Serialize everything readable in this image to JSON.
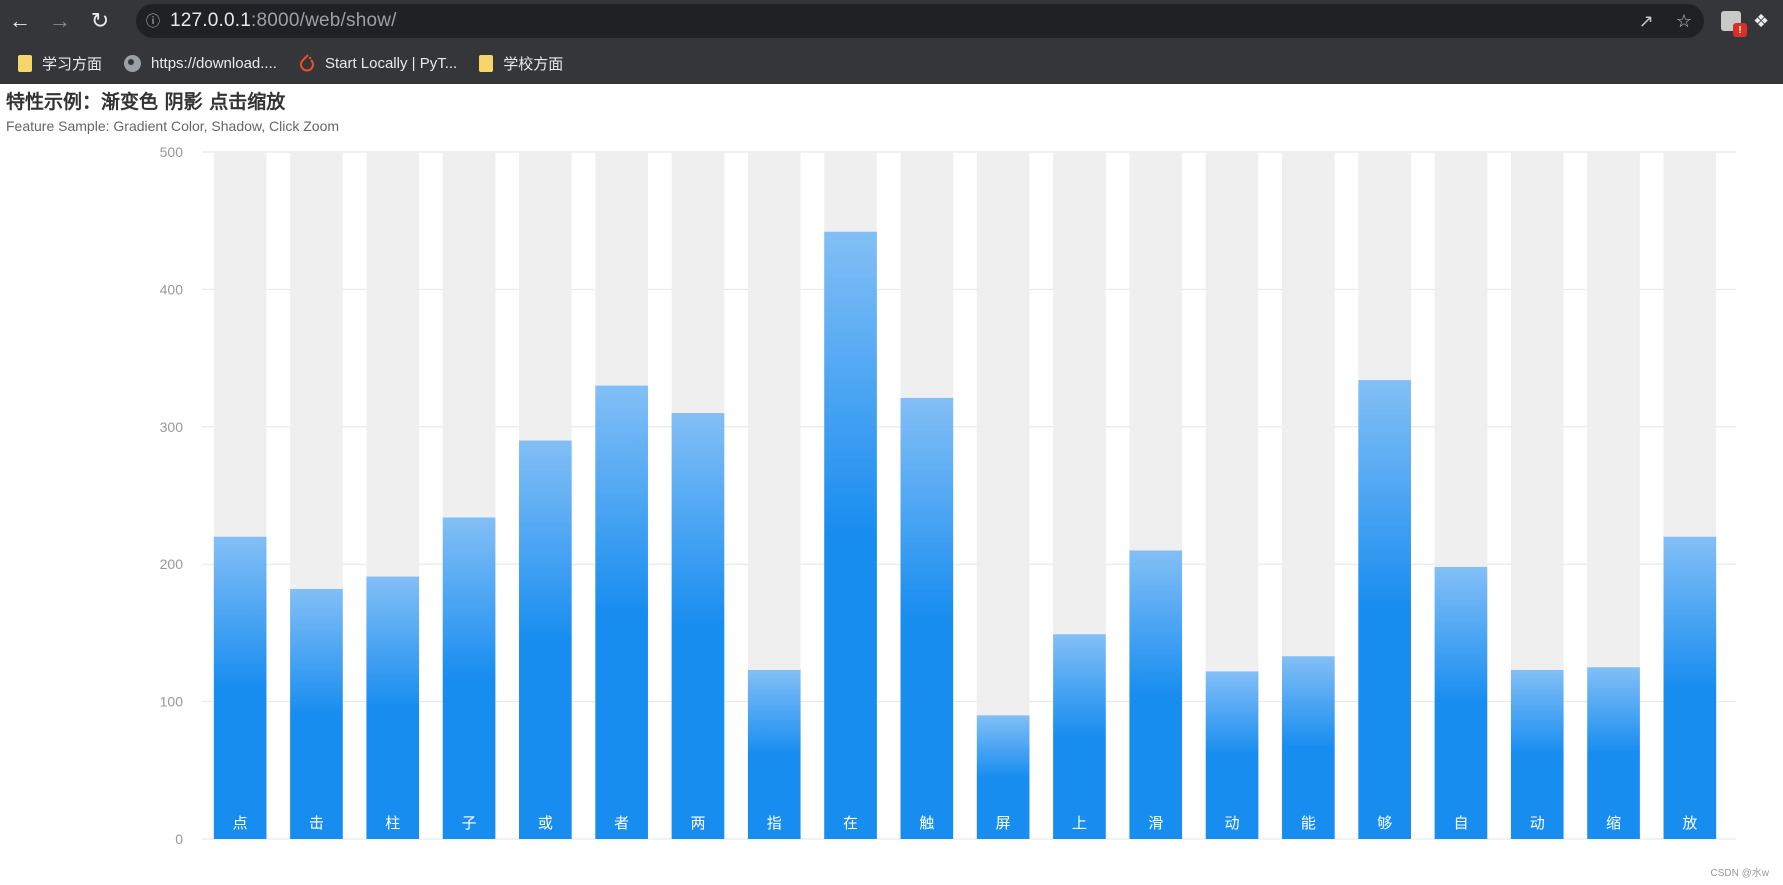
{
  "browser": {
    "url_host": "127.0.0.1",
    "url_rest": ":8000/web/show/",
    "bookmarks": [
      {
        "label": "学习方面",
        "icon": "folder-icon"
      },
      {
        "label": "https://download....",
        "icon": "globe-icon"
      },
      {
        "label": "Start Locally | PyT...",
        "icon": "pytorch-icon"
      },
      {
        "label": "学校方面",
        "icon": "folder-icon"
      }
    ],
    "extension_badge": "!"
  },
  "page": {
    "title": "特性示例：渐变色 阴影 点击缩放",
    "subtitle": "Feature Sample: Gradient Color, Shadow, Click Zoom",
    "watermark": "CSDN @水w"
  },
  "chart_data": {
    "type": "bar",
    "categories": [
      "点",
      "击",
      "柱",
      "子",
      "或",
      "者",
      "两",
      "指",
      "在",
      "触",
      "屏",
      "上",
      "滑",
      "动",
      "能",
      "够",
      "自",
      "动",
      "缩",
      "放"
    ],
    "values": [
      220,
      182,
      191,
      234,
      290,
      330,
      310,
      123,
      442,
      321,
      90,
      149,
      210,
      122,
      133,
      334,
      198,
      123,
      125,
      220
    ],
    "shadow_max": 500,
    "ylim": [
      0,
      500
    ],
    "yticks": [
      0,
      100,
      200,
      300,
      400,
      500
    ],
    "grid": true,
    "colors": {
      "bar_top": "#83bff6",
      "bar_mid": "#188df0",
      "bar_bottom": "#188df0",
      "shadow": "#efefef",
      "grid": "#e6e6e6",
      "axis_label": "#999999",
      "category_label": "#ffffff"
    }
  }
}
